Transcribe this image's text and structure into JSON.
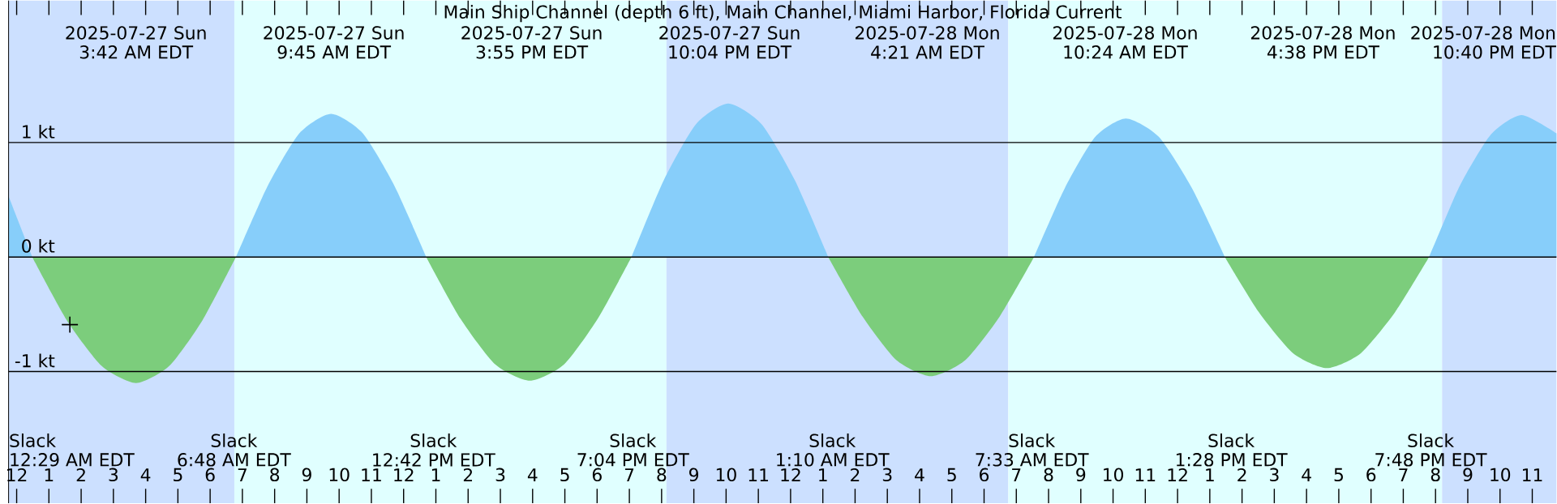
{
  "chart_data": {
    "type": "area",
    "title": "Main Ship Channel (depth 6 ft), Main Channel, Miami Harbor, Florida Current",
    "xlim": [
      "2025-07-26T23:45",
      "2025-07-28T23:45"
    ],
    "ylim": [
      -2.15,
      2.24
    ],
    "xticks": [
      {
        "value": "2025-07-27T00:00",
        "label": "12"
      },
      {
        "value": "2025-07-27T01:00",
        "label": "1"
      },
      {
        "value": "2025-07-27T02:00",
        "label": "2"
      },
      {
        "value": "2025-07-27T03:00",
        "label": "3"
      },
      {
        "value": "2025-07-27T04:00",
        "label": "4"
      },
      {
        "value": "2025-07-27T05:00",
        "label": "5"
      },
      {
        "value": "2025-07-27T06:00",
        "label": "6"
      },
      {
        "value": "2025-07-27T07:00",
        "label": "7"
      },
      {
        "value": "2025-07-27T08:00",
        "label": "8"
      },
      {
        "value": "2025-07-27T09:00",
        "label": "9"
      },
      {
        "value": "2025-07-27T10:00",
        "label": "10"
      },
      {
        "value": "2025-07-27T11:00",
        "label": "11"
      },
      {
        "value": "2025-07-27T12:00",
        "label": "12"
      },
      {
        "value": "2025-07-27T13:00",
        "label": "1"
      },
      {
        "value": "2025-07-27T14:00",
        "label": "2"
      },
      {
        "value": "2025-07-27T15:00",
        "label": "3"
      },
      {
        "value": "2025-07-27T16:00",
        "label": "4"
      },
      {
        "value": "2025-07-27T17:00",
        "label": "5"
      },
      {
        "value": "2025-07-27T18:00",
        "label": "6"
      },
      {
        "value": "2025-07-27T19:00",
        "label": "7"
      },
      {
        "value": "2025-07-27T20:00",
        "label": "8"
      },
      {
        "value": "2025-07-27T21:00",
        "label": "9"
      },
      {
        "value": "2025-07-27T22:00",
        "label": "10"
      },
      {
        "value": "2025-07-27T23:00",
        "label": "11"
      },
      {
        "value": "2025-07-28T00:00",
        "label": "12"
      },
      {
        "value": "2025-07-28T01:00",
        "label": "1"
      },
      {
        "value": "2025-07-28T02:00",
        "label": "2"
      },
      {
        "value": "2025-07-28T03:00",
        "label": "3"
      },
      {
        "value": "2025-07-28T04:00",
        "label": "4"
      },
      {
        "value": "2025-07-28T05:00",
        "label": "5"
      },
      {
        "value": "2025-07-28T06:00",
        "label": "6"
      },
      {
        "value": "2025-07-28T07:00",
        "label": "7"
      },
      {
        "value": "2025-07-28T08:00",
        "label": "8"
      },
      {
        "value": "2025-07-28T09:00",
        "label": "9"
      },
      {
        "value": "2025-07-28T10:00",
        "label": "10"
      },
      {
        "value": "2025-07-28T11:00",
        "label": "11"
      },
      {
        "value": "2025-07-28T12:00",
        "label": "12"
      },
      {
        "value": "2025-07-28T13:00",
        "label": "1"
      },
      {
        "value": "2025-07-28T14:00",
        "label": "2"
      },
      {
        "value": "2025-07-28T15:00",
        "label": "3"
      },
      {
        "value": "2025-07-28T16:00",
        "label": "4"
      },
      {
        "value": "2025-07-28T17:00",
        "label": "5"
      },
      {
        "value": "2025-07-28T18:00",
        "label": "6"
      },
      {
        "value": "2025-07-28T19:00",
        "label": "7"
      },
      {
        "value": "2025-07-28T20:00",
        "label": "8"
      },
      {
        "value": "2025-07-28T21:00",
        "label": "9"
      },
      {
        "value": "2025-07-28T22:00",
        "label": "10"
      },
      {
        "value": "2025-07-28T23:00",
        "label": "11"
      }
    ],
    "yticks": [
      {
        "value": -1,
        "label": "-1 kt"
      },
      {
        "value": 0,
        "label": "0 kt"
      },
      {
        "value": 1,
        "label": "1 kt"
      }
    ],
    "grid": "y",
    "bands": [
      {
        "axis": "x",
        "from": "2025-07-26T23:45",
        "to": "2025-07-27T06:45",
        "color": "#cce0ff"
      },
      {
        "axis": "x",
        "from": "2025-07-27T06:45",
        "to": "2025-07-27T20:09",
        "color": "#e0ffff"
      },
      {
        "axis": "x",
        "from": "2025-07-27T20:09",
        "to": "2025-07-28T06:45",
        "color": "#cce0ff"
      },
      {
        "axis": "x",
        "from": "2025-07-28T06:45",
        "to": "2025-07-28T20:12",
        "color": "#e0ffff"
      },
      {
        "axis": "x",
        "from": "2025-07-28T20:12",
        "to": "2025-07-28T23:45",
        "color": "#cce0ff"
      }
    ],
    "series": [
      {
        "color": "#87cefa",
        "x": [
          "2025-07-26T23:45",
          "2025-07-27T00:29",
          "2025-07-27T03:42",
          "2025-07-27T06:48",
          "2025-07-27T07:47",
          "2025-07-27T08:46",
          "2025-07-27T09:45",
          "2025-07-27T10:44",
          "2025-07-27T11:43",
          "2025-07-27T12:42",
          "2025-07-27T15:55",
          "2025-07-27T19:04",
          "2025-07-27T20:04",
          "2025-07-27T21:04",
          "2025-07-27T22:04",
          "2025-07-27T23:06",
          "2025-07-28T00:08",
          "2025-07-28T01:10",
          "2025-07-28T04:21",
          "2025-07-28T07:33",
          "2025-07-28T08:30",
          "2025-07-28T09:27",
          "2025-07-28T10:24",
          "2025-07-28T11:25",
          "2025-07-28T12:27",
          "2025-07-28T13:28",
          "2025-07-28T16:38",
          "2025-07-28T19:48",
          "2025-07-28T20:45",
          "2025-07-28T21:43",
          "2025-07-28T22:40",
          "2025-07-28T23:45"
        ],
        "values": [
          0.53,
          0,
          null,
          0,
          0.62,
          1.08,
          1.25,
          1.08,
          0.62,
          0,
          null,
          0,
          0.67,
          1.16,
          1.34,
          1.16,
          0.67,
          0,
          null,
          0,
          0.6,
          1.05,
          1.21,
          1.05,
          0.6,
          0,
          null,
          0,
          0.62,
          1.07,
          1.24,
          1.08
        ]
      },
      {
        "color": "#7ccd7c",
        "x": [
          "2025-07-27T00:29",
          "2025-07-27T01:33",
          "2025-07-27T02:38",
          "2025-07-27T03:42",
          "2025-07-27T04:44",
          "2025-07-27T05:46",
          "2025-07-27T06:48",
          "2025-07-27T09:45",
          "2025-07-27T12:42",
          "2025-07-27T13:46",
          "2025-07-27T14:51",
          "2025-07-27T15:55",
          "2025-07-27T16:58",
          "2025-07-27T18:01",
          "2025-07-27T19:04",
          "2025-07-27T22:04",
          "2025-07-28T01:10",
          "2025-07-28T02:14",
          "2025-07-28T03:17",
          "2025-07-28T04:21",
          "2025-07-28T05:25",
          "2025-07-28T06:29",
          "2025-07-28T07:33",
          "2025-07-28T10:24",
          "2025-07-28T13:28",
          "2025-07-28T14:31",
          "2025-07-28T15:35",
          "2025-07-28T16:38",
          "2025-07-28T17:41",
          "2025-07-28T18:45",
          "2025-07-28T19:48"
        ],
        "values": [
          0,
          -0.55,
          -0.95,
          -1.1,
          -0.95,
          -0.55,
          0,
          null,
          0,
          -0.54,
          -0.94,
          -1.08,
          -0.94,
          -0.54,
          0,
          null,
          0,
          -0.52,
          -0.9,
          -1.04,
          -0.9,
          -0.52,
          0,
          null,
          0,
          -0.48,
          -0.84,
          -0.97,
          -0.84,
          -0.48,
          0
        ]
      },
      {
        "type": "scatter",
        "marker": "cross",
        "color": "#000000",
        "x": [
          "2025-07-27T01:39"
        ],
        "values": [
          -0.59
        ]
      }
    ],
    "annotations": [
      "2025-07-27 Sun",
      "3:42 AM EDT",
      "2025-07-27 Sun",
      "9:45 AM EDT",
      "2025-07-27 Sun",
      "3:55 PM EDT",
      "2025-07-27 Sun",
      "10:04 PM EDT",
      "2025-07-28 Mon",
      "4:21 AM EDT",
      "2025-07-28 Mon",
      "10:24 AM EDT",
      "2025-07-28 Mon",
      "4:38 PM EDT",
      "2025-07-28 Mon",
      "10:40 PM EDT",
      "Slack",
      "12:29 AM EDT",
      "Slack",
      "6:48 AM EDT",
      "Slack",
      "12:42 PM EDT",
      "Slack",
      "7:04 PM EDT",
      "Slack",
      "1:10 AM EDT",
      "Slack",
      "7:33 AM EDT",
      "Slack",
      "1:28 PM EDT",
      "Slack",
      "7:48 PM EDT"
    ]
  }
}
